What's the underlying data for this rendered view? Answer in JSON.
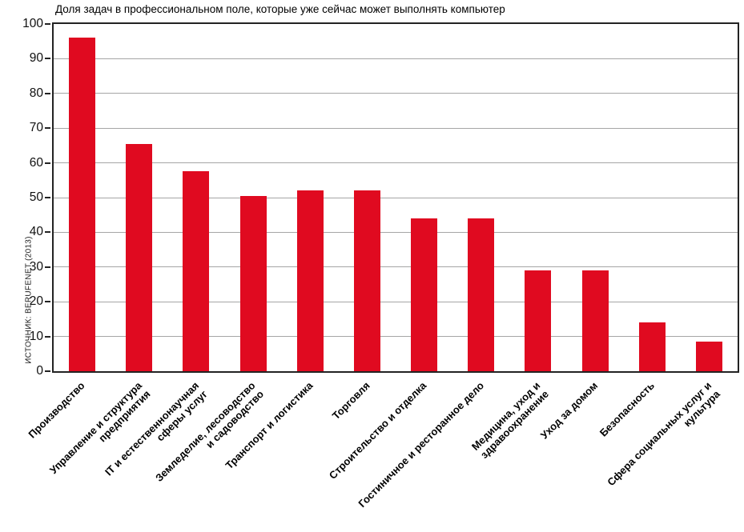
{
  "colors": {
    "bar": "#e00a20",
    "grid": "#a6a6a6",
    "axis": "#232323",
    "text": "#000000"
  },
  "chart_data": {
    "type": "bar",
    "title": "Доля задач в профессиональном поле, которые уже сейчас может выполнять компьютер",
    "source": "ИСТОЧНИК: BERUFENET (2013)",
    "categories": [
      "Производство",
      "Управление и структура предприятия",
      "IT и естественнонаучная сферы услуг",
      "Земледелие, лесоводство и садоводство",
      "Транспорт и логистика",
      "Торговля",
      "Строительство и отделка",
      "Гостиничное и ресторанное дело",
      "Медицина, уход и здравоохранение",
      "Уход за домом",
      "Безопасность",
      "Сфера социальных услуг и культура"
    ],
    "categories_multiline": [
      [
        "Производство"
      ],
      [
        "Управление и структура",
        "предприятия"
      ],
      [
        "IT и естественнонаучная",
        "сферы услуг"
      ],
      [
        "Земледелие, лесоводство",
        "и садоводство"
      ],
      [
        "Транспорт и логистика"
      ],
      [
        "Торговля"
      ],
      [
        "Строительство и отделка"
      ],
      [
        "Гостиничное и ресторанное дело"
      ],
      [
        "Медицина, уход и",
        "здравоохранение"
      ],
      [
        "Уход за домом"
      ],
      [
        "Безопасность"
      ],
      [
        "Сфера социальных услуг и",
        "культура"
      ]
    ],
    "values": [
      96,
      65.5,
      57.5,
      50.5,
      52,
      52,
      44,
      44,
      29,
      29,
      14,
      8.5
    ],
    "xlabel": "",
    "ylabel": "",
    "ylim": [
      0,
      100
    ],
    "yticks": [
      0,
      10,
      20,
      30,
      40,
      50,
      60,
      70,
      80,
      90,
      100
    ],
    "grid": true,
    "legend_position": "none",
    "bar_color": "#e00a20"
  }
}
